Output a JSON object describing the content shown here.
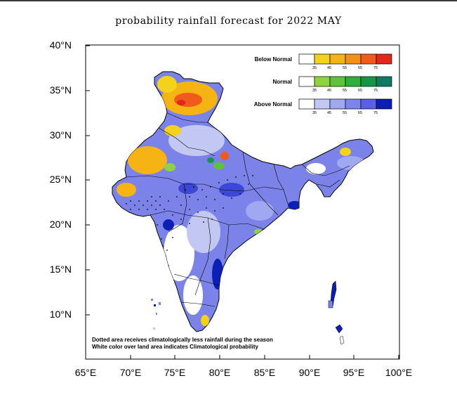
{
  "title": "probability rainfall forecast for 2022 MAY",
  "lat_labels": [
    "40°N",
    "35°N",
    "30°N",
    "25°N",
    "20°N",
    "15°N",
    "10°N"
  ],
  "lon_labels": [
    "65°E",
    "70°E",
    "75°E",
    "80°E",
    "85°E",
    "90°E",
    "95°E",
    "100°E"
  ],
  "lat_ticks": [
    40,
    35,
    30,
    25,
    20,
    15,
    10
  ],
  "lon_ticks": [
    65,
    70,
    75,
    80,
    85,
    90,
    95,
    100
  ],
  "map_extent": {
    "lon": [
      65,
      100
    ],
    "lat": [
      5.5,
      40
    ]
  },
  "legend": [
    {
      "label": "Below Normal",
      "colors": [
        "#ffffff",
        "#f2d21a",
        "#f5b314",
        "#f49018",
        "#f05a1a",
        "#e3271b"
      ]
    },
    {
      "label": "Normal",
      "colors": [
        "#ffffff",
        "#8fd33e",
        "#5ec33a",
        "#2fae3b",
        "#149645",
        "#0e7a63"
      ]
    },
    {
      "label": "Above Normal",
      "colors": [
        "#ffffff",
        "#c3c8f3",
        "#a0a8ef",
        "#7d85ea",
        "#5b5fe3",
        "#0b1fb4"
      ]
    }
  ],
  "legend_ticks": [
    "35",
    "45",
    "55",
    "65",
    "75"
  ],
  "notes": [
    "Dotted area receives climatologically less rainfall during the season",
    "White color over land area indicates Climatological probability"
  ]
}
